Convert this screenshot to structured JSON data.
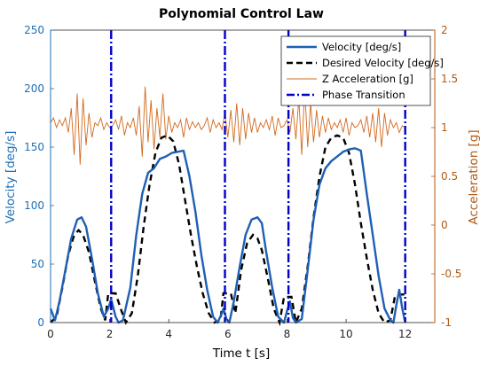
{
  "chart_data": {
    "type": "line",
    "title": "Polynomial Control Law",
    "xlabel": "Time t [s]",
    "ylabel_left": "Velocity [deg/s]",
    "ylabel_right": "Acceleration [g]",
    "xlim": [
      0,
      13
    ],
    "ylim_left": [
      0,
      250
    ],
    "ylim_right": [
      -1,
      2
    ],
    "x_ticks": [
      "0",
      "2",
      "4",
      "6",
      "8",
      "10",
      "12"
    ],
    "y_left_ticks": [
      "0",
      "50",
      "100",
      "150",
      "200",
      "250"
    ],
    "y_right_ticks": [
      "-1",
      "-0.5",
      "0",
      "0.5",
      "1",
      "1.5",
      "2"
    ],
    "grid": false,
    "legend_position": "top-right",
    "colors": {
      "velocity": "#1f5fb4",
      "desired": "#000000",
      "accel": "#d2691e",
      "phase": "#0000cc",
      "left_axis": "#1f6fb4",
      "right_axis": "#b05a14"
    },
    "series": [
      {
        "name": "Velocity [deg/s]",
        "axis": "left",
        "style": "solid",
        "x": [
          0,
          0.15,
          0.3,
          0.5,
          0.7,
          0.9,
          1.05,
          1.2,
          1.4,
          1.6,
          1.8,
          1.95,
          2.05,
          2.2,
          2.3,
          2.45,
          2.7,
          2.9,
          3.1,
          3.3,
          3.5,
          3.7,
          3.9,
          4.1,
          4.3,
          4.5,
          4.7,
          4.9,
          5.1,
          5.3,
          5.5,
          5.65,
          5.8,
          5.85,
          5.95,
          6.05,
          6.2,
          6.4,
          6.6,
          6.8,
          7.0,
          7.15,
          7.3,
          7.5,
          7.7,
          7.9,
          8.0,
          8.1,
          8.2,
          8.3,
          8.5,
          8.7,
          8.9,
          9.1,
          9.3,
          9.5,
          9.7,
          9.9,
          10.1,
          10.3,
          10.5,
          10.7,
          10.9,
          11.1,
          11.3,
          11.5,
          11.6,
          11.7,
          11.8,
          11.9,
          12.0
        ],
        "y": [
          12,
          2,
          18,
          45,
          72,
          88,
          90,
          82,
          55,
          25,
          5,
          12,
          20,
          5,
          0,
          2,
          30,
          75,
          110,
          128,
          132,
          140,
          142,
          145,
          146,
          147,
          125,
          95,
          58,
          28,
          5,
          0,
          8,
          12,
          3,
          0,
          18,
          48,
          75,
          88,
          90,
          85,
          60,
          30,
          5,
          0,
          10,
          18,
          4,
          0,
          3,
          45,
          88,
          118,
          132,
          138,
          142,
          146,
          148,
          149,
          147,
          110,
          75,
          40,
          12,
          2,
          0,
          15,
          28,
          12,
          0
        ]
      },
      {
        "name": "Desired Velocity [deg/s]",
        "axis": "left",
        "style": "dashed",
        "x": [
          0,
          0.2,
          0.4,
          0.6,
          0.8,
          0.95,
          1.1,
          1.3,
          1.5,
          1.7,
          1.85,
          1.95,
          2.2,
          2.4,
          2.55,
          2.75,
          2.95,
          3.15,
          3.35,
          3.55,
          3.75,
          3.95,
          4.15,
          4.35,
          4.55,
          4.75,
          4.95,
          5.15,
          5.35,
          5.55,
          5.75,
          5.85,
          6.1,
          6.25,
          6.45,
          6.65,
          6.85,
          7.0,
          7.15,
          7.35,
          7.55,
          7.75,
          7.9,
          8.15,
          8.3,
          8.5,
          8.7,
          8.9,
          9.1,
          9.3,
          9.5,
          9.7,
          9.9,
          10.1,
          10.3,
          10.5,
          10.7,
          10.9,
          11.1,
          11.3,
          11.5,
          11.65,
          11.75,
          12.0
        ],
        "y": [
          0,
          5,
          30,
          58,
          75,
          79,
          75,
          60,
          35,
          12,
          2,
          25,
          25,
          10,
          0,
          8,
          40,
          82,
          118,
          145,
          158,
          160,
          155,
          135,
          105,
          75,
          48,
          25,
          8,
          0,
          2,
          25,
          25,
          8,
          45,
          68,
          75,
          72,
          62,
          38,
          12,
          0,
          22,
          22,
          0,
          12,
          48,
          90,
          125,
          150,
          158,
          160,
          158,
          145,
          118,
          85,
          55,
          28,
          8,
          0,
          2,
          22,
          24,
          24
        ]
      },
      {
        "name": "Z Acceleration [g]",
        "axis": "right",
        "style": "thin",
        "x": [
          0,
          0.1,
          0.2,
          0.3,
          0.4,
          0.5,
          0.6,
          0.7,
          0.8,
          0.9,
          1.0,
          1.1,
          1.2,
          1.3,
          1.4,
          1.5,
          1.6,
          1.7,
          1.8,
          1.9,
          2.0,
          2.1,
          2.2,
          2.3,
          2.4,
          2.5,
          2.6,
          2.7,
          2.8,
          2.9,
          3.0,
          3.1,
          3.2,
          3.3,
          3.4,
          3.5,
          3.6,
          3.7,
          3.8,
          3.9,
          4.0,
          4.1,
          4.2,
          4.3,
          4.4,
          4.5,
          4.6,
          4.7,
          4.8,
          4.9,
          5.0,
          5.1,
          5.2,
          5.3,
          5.4,
          5.5,
          5.6,
          5.7,
          5.8,
          5.9,
          6.0,
          6.1,
          6.2,
          6.3,
          6.4,
          6.5,
          6.6,
          6.7,
          6.8,
          6.9,
          7.0,
          7.1,
          7.2,
          7.3,
          7.4,
          7.5,
          7.6,
          7.7,
          7.8,
          7.9,
          8.0,
          8.1,
          8.2,
          8.3,
          8.4,
          8.5,
          8.6,
          8.7,
          8.8,
          8.9,
          9.0,
          9.1,
          9.2,
          9.3,
          9.4,
          9.5,
          9.6,
          9.7,
          9.8,
          9.9,
          10.0,
          10.1,
          10.2,
          10.3,
          10.4,
          10.5,
          10.6,
          10.7,
          10.8,
          10.9,
          11.0,
          11.1,
          11.2,
          11.3,
          11.4,
          11.5,
          11.6,
          11.7,
          11.8,
          11.9,
          12.0
        ],
        "y": [
          1.05,
          1.1,
          1.0,
          1.08,
          1.02,
          1.1,
          0.95,
          1.2,
          0.72,
          1.35,
          0.62,
          1.3,
          0.82,
          1.15,
          0.9,
          1.05,
          1.02,
          1.1,
          0.98,
          1.05,
          1.0,
          1.02,
          1.08,
          0.98,
          1.12,
          0.92,
          1.05,
          1.0,
          1.1,
          0.92,
          1.22,
          0.7,
          1.42,
          0.85,
          1.28,
          0.78,
          1.2,
          0.9,
          1.35,
          0.88,
          1.12,
          0.95,
          1.05,
          1.0,
          1.08,
          0.9,
          1.1,
          0.98,
          1.06,
          1.0,
          1.05,
          0.98,
          1.02,
          1.1,
          0.95,
          1.08,
          1.0,
          1.05,
          0.98,
          1.15,
          0.9,
          1.18,
          0.85,
          1.25,
          0.82,
          1.2,
          0.88,
          1.15,
          0.95,
          1.1,
          0.95,
          1.05,
          1.0,
          1.08,
          0.98,
          1.12,
          0.92,
          1.1,
          1.0,
          1.02,
          1.08,
          0.95,
          1.2,
          0.88,
          1.3,
          0.72,
          1.42,
          0.8,
          1.25,
          0.85,
          1.18,
          0.9,
          1.12,
          0.95,
          1.1,
          0.98,
          1.05,
          1.0,
          1.08,
          0.95,
          1.1,
          0.92,
          1.05,
          1.0,
          1.02,
          1.08,
          0.95,
          1.12,
          0.9,
          1.15,
          0.85,
          1.2,
          0.8,
          1.15,
          0.92,
          1.08,
          1.0,
          1.05,
          0.95,
          1.02,
          1.0
        ]
      },
      {
        "name": "Phase Transition",
        "axis": "left",
        "style": "dashdot",
        "x_positions": [
          2.05,
          5.9,
          8.05,
          12.0
        ]
      }
    ]
  }
}
